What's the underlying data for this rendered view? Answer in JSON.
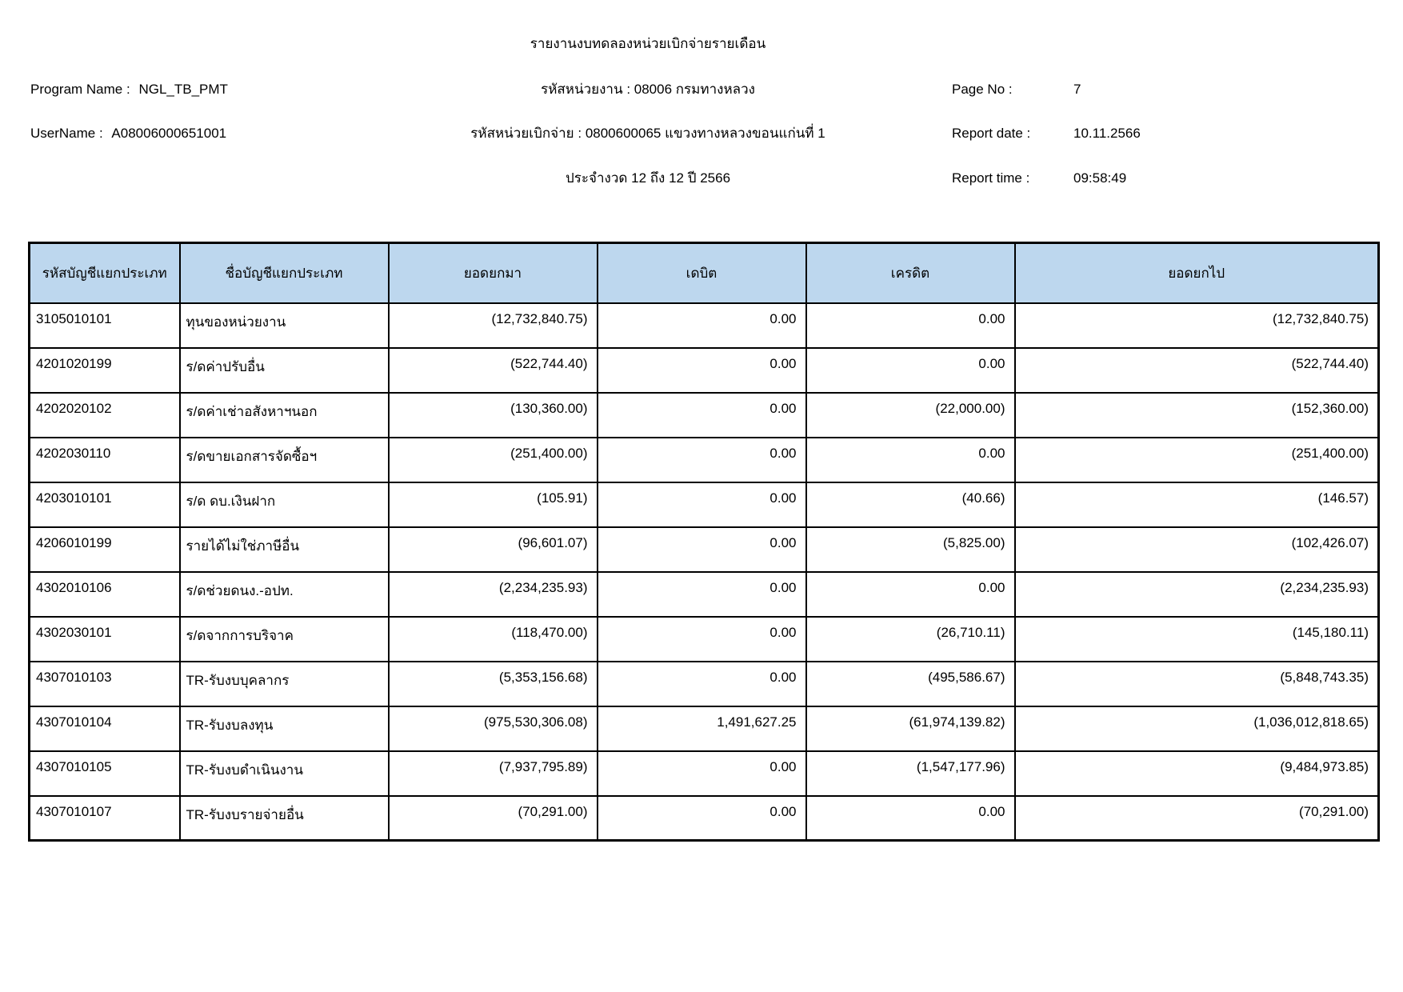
{
  "report": {
    "title": "รายงานงบทดลองหน่วยเบิกจ่ายรายเดือน",
    "program_name_label": "Program Name :",
    "program_name": "NGL_TB_PMT",
    "username_label": "UserName :",
    "username": "A08006000651001",
    "agency_line": "รหัสหน่วยงาน : 08006 กรมทางหลวง",
    "disbursement_unit_line": "รหัสหน่วยเบิกจ่าย : 0800600065 แขวงทางหลวงขอนแก่นที่ 1",
    "period_line": "ประจำงวด 12 ถึง 12 ปี 2566",
    "page_no_label": "Page No :",
    "page_no": "7",
    "report_date_label": "Report date :",
    "report_date": "10.11.2566",
    "report_time_label": "Report time :",
    "report_time": "09:58:49"
  },
  "table": {
    "header_bg": "#BDD7EE",
    "border_color": "#000000",
    "columns": [
      "รหัสบัญชีแยกประเภท",
      "ชื่อบัญชีแยกประเภท",
      "ยอดยกมา",
      "เดบิต",
      "เครดิต",
      "ยอดยกไป"
    ],
    "rows": [
      [
        "3105010101",
        "ทุนของหน่วยงาน",
        "(12,732,840.75)",
        "0.00",
        "0.00",
        "(12,732,840.75)"
      ],
      [
        "4201020199",
        "ร/ดค่าปรับอื่น",
        "(522,744.40)",
        "0.00",
        "0.00",
        "(522,744.40)"
      ],
      [
        "4202020102",
        "ร/ดค่าเช่าอสังหาฯนอก",
        "(130,360.00)",
        "0.00",
        "(22,000.00)",
        "(152,360.00)"
      ],
      [
        "4202030110",
        "ร/ดขายเอกสารจัดซื้อฯ",
        "(251,400.00)",
        "0.00",
        "0.00",
        "(251,400.00)"
      ],
      [
        "4203010101",
        "ร/ด ดบ.เงินฝาก",
        "(105.91)",
        "0.00",
        "(40.66)",
        "(146.57)"
      ],
      [
        "4206010199",
        "รายได้ไม่ใช่ภาษีอื่น",
        "(96,601.07)",
        "0.00",
        "(5,825.00)",
        "(102,426.07)"
      ],
      [
        "4302010106",
        "ร/ดช่วยดนง.-อปท.",
        "(2,234,235.93)",
        "0.00",
        "0.00",
        "(2,234,235.93)"
      ],
      [
        "4302030101",
        "ร/ดจากการบริจาค",
        "(118,470.00)",
        "0.00",
        "(26,710.11)",
        "(145,180.11)"
      ],
      [
        "4307010103",
        "TR-รับงบบุคลากร",
        "(5,353,156.68)",
        "0.00",
        "(495,586.67)",
        "(5,848,743.35)"
      ],
      [
        "4307010104",
        "TR-รับงบลงทุน",
        "(975,530,306.08)",
        "1,491,627.25",
        "(61,974,139.82)",
        "(1,036,012,818.65)"
      ],
      [
        "4307010105",
        "TR-รับงบดำเนินงาน",
        "(7,937,795.89)",
        "0.00",
        "(1,547,177.96)",
        "(9,484,973.85)"
      ],
      [
        "4307010107",
        "TR-รับงบรายจ่ายอื่น",
        "(70,291.00)",
        "0.00",
        "0.00",
        "(70,291.00)"
      ]
    ],
    "cell_names": [
      "cell-account-code",
      "cell-account-name",
      "cell-opening-balance",
      "cell-debit",
      "cell-credit",
      "cell-closing-balance"
    ]
  }
}
